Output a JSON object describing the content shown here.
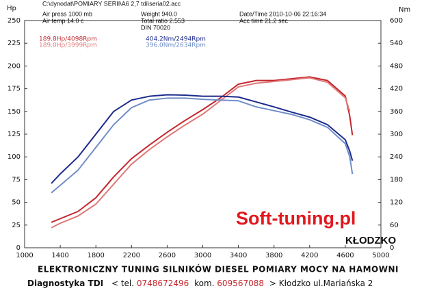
{
  "chart_data": {
    "type": "line",
    "header_lines": [
      "C:\\dynodat\\POMIARY SERII\\A6 2,7 tdi\\seria02.acc",
      "Air press 1000 mb",
      "Air temp 14.0 c",
      "Weight 940.0",
      "Total ratio 2.553",
      "DIN 70020",
      "Date/Time 2010-10-06 22:16:34",
      "Acc time 21.2 sec"
    ],
    "ylabel": "Hp",
    "y2label": "Nm",
    "xlim": [
      1000,
      5000
    ],
    "xticks": [
      1000,
      1400,
      1800,
      2200,
      2600,
      3000,
      3400,
      3800,
      4200,
      4600,
      5000
    ],
    "ylim": [
      0,
      250
    ],
    "yticks": [
      0,
      25,
      50,
      75,
      100,
      125,
      150,
      175,
      200,
      225,
      250
    ],
    "y2lim": [
      0,
      600
    ],
    "y2ticks": [
      0,
      60,
      120,
      180,
      240,
      300,
      360,
      420,
      480,
      540,
      600
    ],
    "x": [
      1300,
      1400,
      1600,
      1800,
      2000,
      2200,
      2400,
      2600,
      2800,
      3000,
      3200,
      3400,
      3600,
      3800,
      4000,
      4200,
      4400,
      4600,
      4650,
      4680
    ],
    "series": [
      {
        "name": "189.8Hp/4098Rpm",
        "color": "#c4262c",
        "values": [
          28,
          32,
          40,
          55,
          78,
          98,
          113,
          127,
          140,
          152,
          165,
          180,
          184,
          184,
          186,
          188,
          184,
          167,
          145,
          124
        ]
      },
      {
        "name": "189.0Hp/3999Rpm",
        "color": "#e07878",
        "values": [
          22,
          27,
          35,
          48,
          70,
          92,
          108,
          122,
          135,
          147,
          162,
          177,
          181,
          183,
          185,
          187,
          182,
          165,
          150,
          null
        ]
      },
      {
        "name": "404.2Nm/2494Rpm",
        "color": "#1c2a8c",
        "axis": "y2",
        "values": [
          170,
          195,
          240,
          300,
          360,
          390,
          400,
          404,
          403,
          400,
          400,
          398,
          385,
          372,
          358,
          345,
          325,
          285,
          255,
          230
        ]
      },
      {
        "name": "396.0Nm/2634Rpm",
        "color": "#6f8ec8",
        "axis": "y2",
        "values": [
          145,
          165,
          205,
          265,
          325,
          370,
          390,
          395,
          395,
          392,
          390,
          388,
          372,
          362,
          352,
          338,
          318,
          275,
          240,
          195
        ]
      }
    ],
    "brand": "Soft-tuning.pl",
    "city": "KŁODZKO",
    "footer_title": "ELEKTRONICZNY  TUNING  SILNIKÓW  DIESEL   POMIARY  MOCY  NA  HAMOWNI",
    "footer_parts": [
      "Diagnostyka TDI",
      "< tel.",
      "0748672496",
      "kom.",
      "609567088",
      "> Kłodzko ul.Mariańska 2"
    ]
  }
}
